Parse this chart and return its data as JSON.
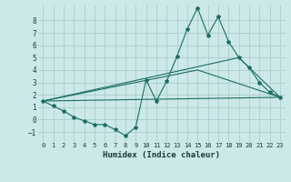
{
  "xlabel": "Humidex (Indice chaleur)",
  "background_color": "#cce8e8",
  "grid_color": "#aacece",
  "line_color": "#1a6e60",
  "xlim": [
    -0.5,
    23.5
  ],
  "ylim": [
    -1.8,
    9.2
  ],
  "yticks": [
    -1,
    0,
    1,
    2,
    3,
    4,
    5,
    6,
    7,
    8
  ],
  "xticks": [
    0,
    1,
    2,
    3,
    4,
    5,
    6,
    7,
    8,
    9,
    10,
    11,
    12,
    13,
    14,
    15,
    16,
    17,
    18,
    19,
    20,
    21,
    22,
    23
  ],
  "series1_x": [
    0,
    1,
    2,
    3,
    4,
    5,
    6,
    7,
    8,
    9,
    10,
    11,
    12,
    13,
    14,
    15,
    16,
    17,
    18,
    19,
    20,
    21,
    22,
    23
  ],
  "series1_y": [
    1.5,
    1.1,
    0.7,
    0.2,
    -0.1,
    -0.4,
    -0.4,
    -0.8,
    -1.3,
    -0.6,
    3.2,
    1.5,
    3.1,
    5.1,
    7.3,
    9.0,
    6.8,
    8.3,
    6.3,
    5.0,
    4.2,
    3.0,
    2.2,
    1.8
  ],
  "series2_x": [
    0,
    23
  ],
  "series2_y": [
    1.5,
    1.8
  ],
  "series3_x": [
    0,
    15,
    23
  ],
  "series3_y": [
    1.5,
    4.0,
    1.8
  ],
  "series4_x": [
    0,
    19,
    23
  ],
  "series4_y": [
    1.5,
    5.0,
    1.8
  ]
}
